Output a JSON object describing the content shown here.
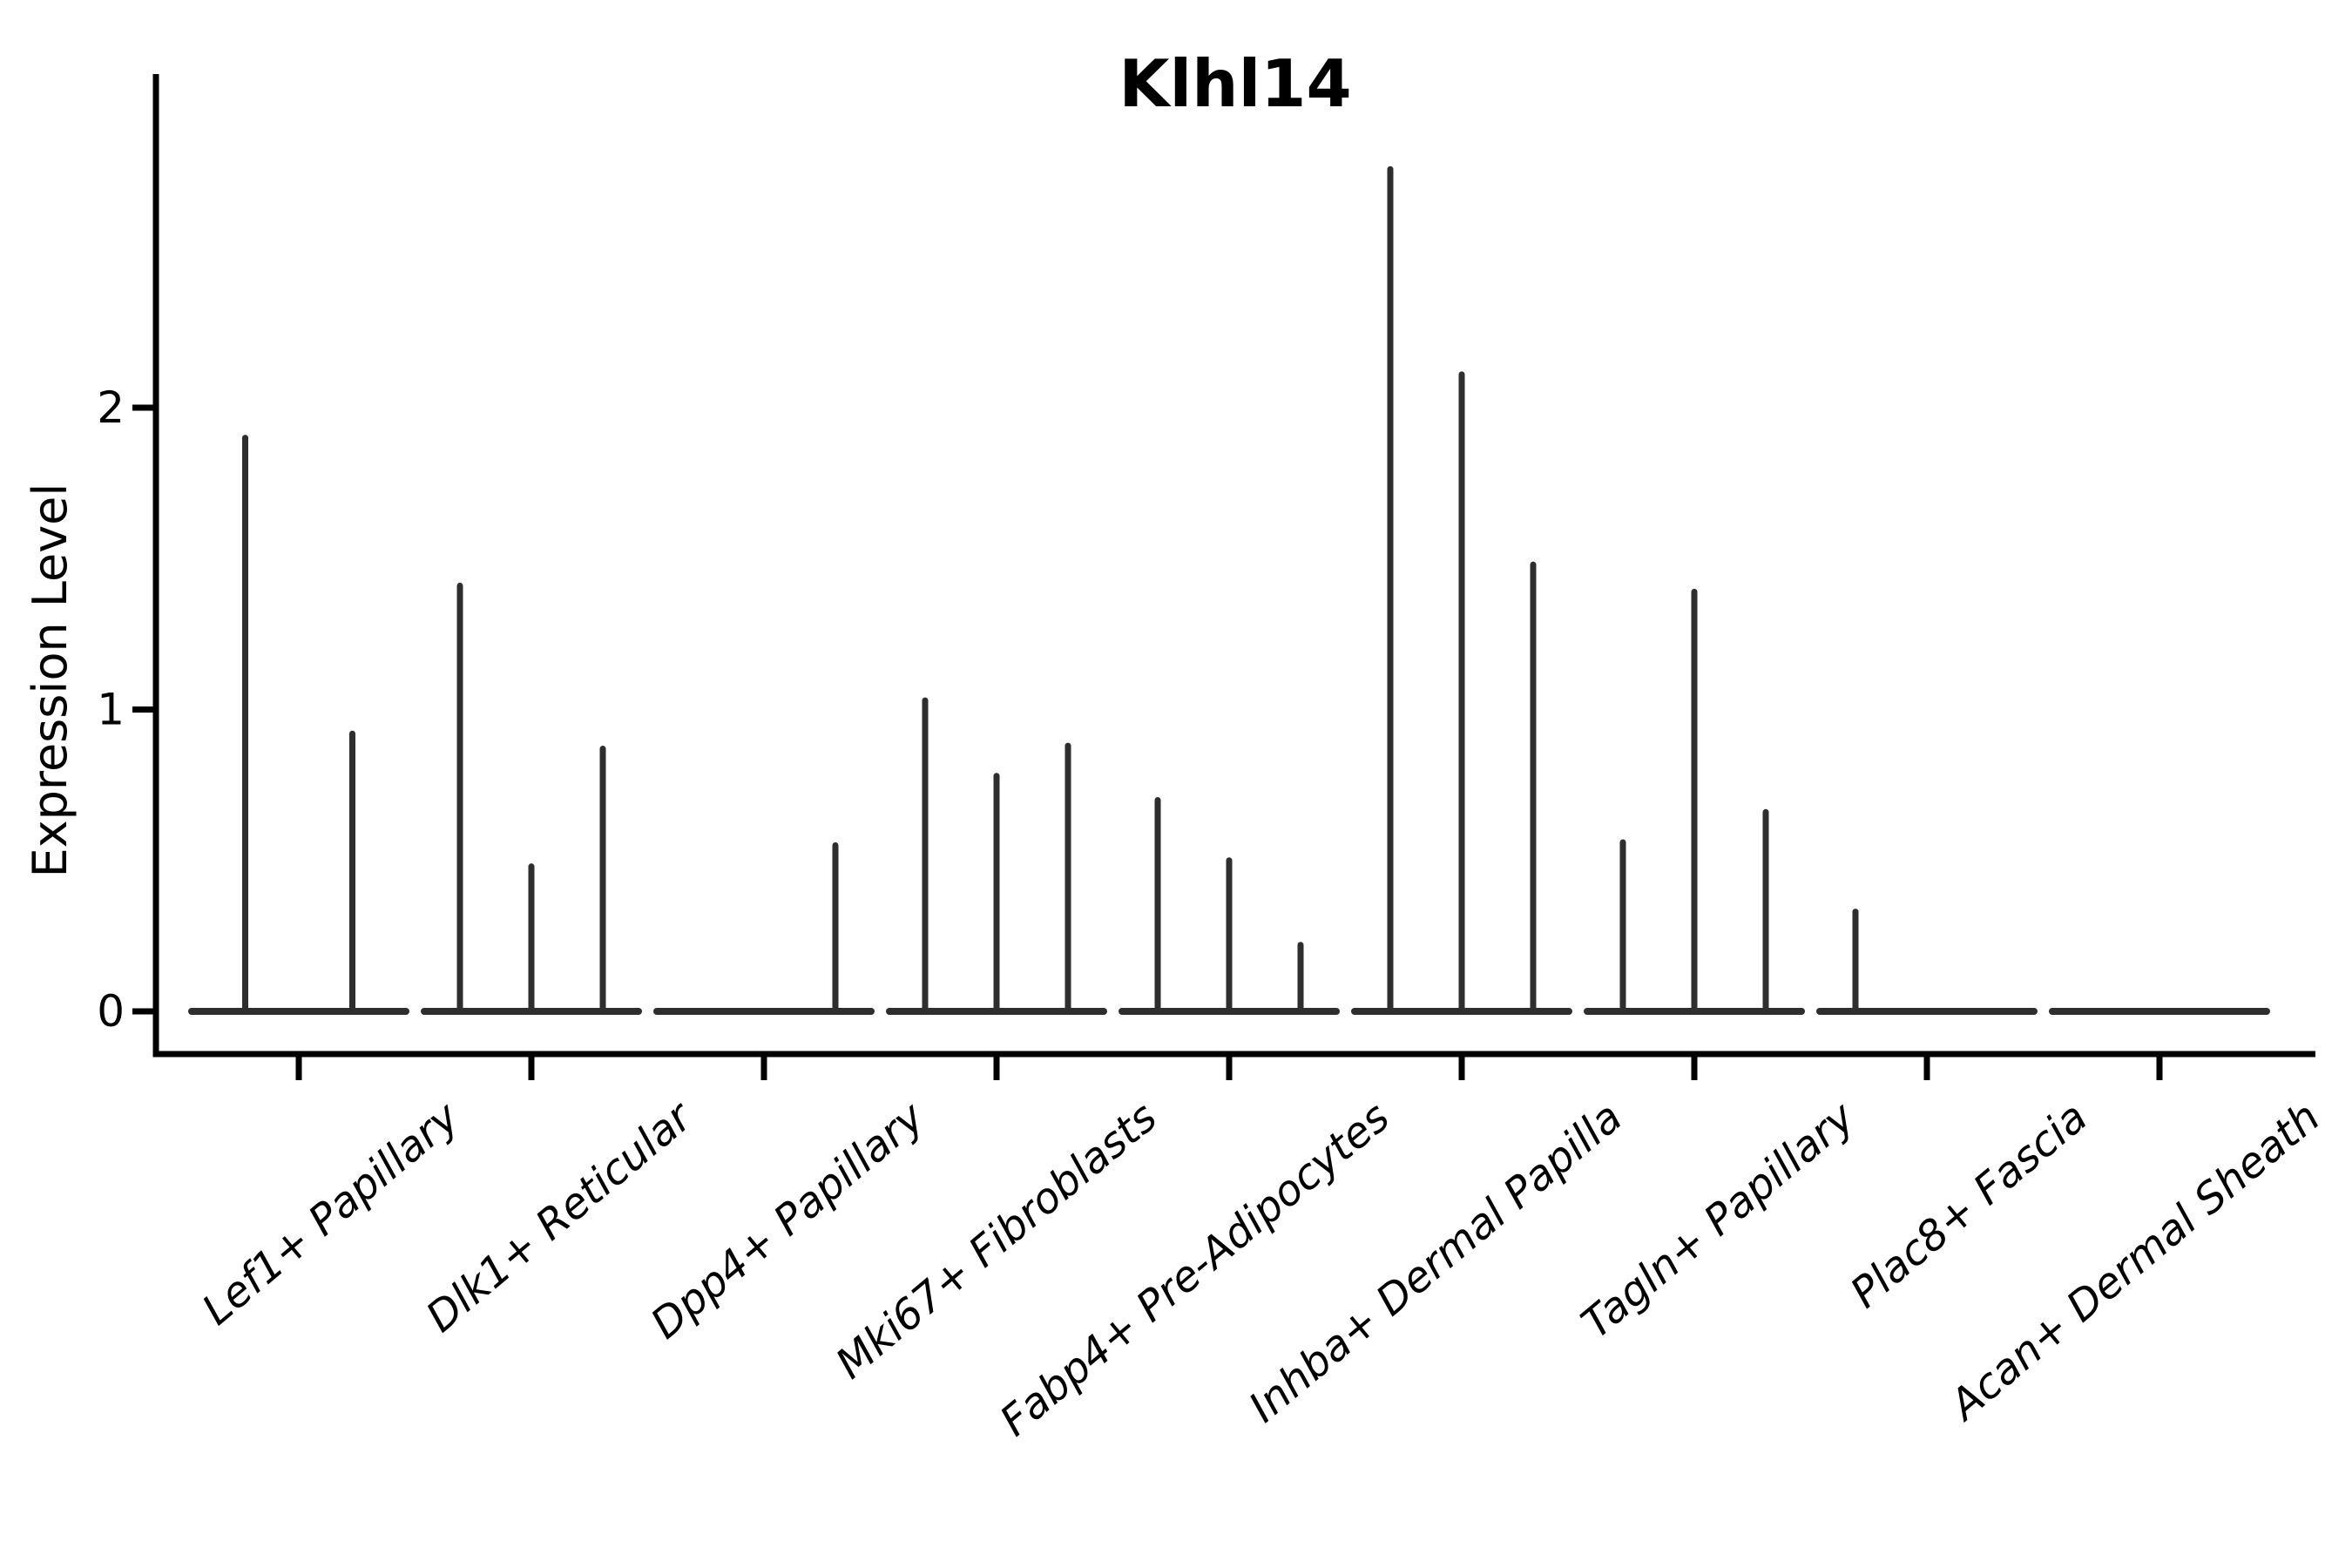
{
  "title": "Klhl14",
  "y_axis": {
    "label": "Expression Level",
    "ticks": [
      "0",
      "1",
      "2"
    ],
    "tick_values": [
      0,
      1,
      2
    ]
  },
  "chart_data": {
    "type": "violin",
    "title": "Klhl14",
    "xlabel": "",
    "ylabel": "Expression Level",
    "yticks": [
      0,
      1,
      2
    ],
    "ylim": [
      -0.14,
      3.11
    ],
    "grid": false,
    "legend": false,
    "description": "Collapsed (spike-like) violins of gene expression per cell type; each category shows a flat baseline at 0 with thin vertical violins whose tops mark the maximum expression level.",
    "categories": [
      "Lef1+ Papillary",
      "Dlk1+ Reticular",
      "Dpp4+ Papillary",
      "Mki67+ Fibroblasts",
      "Fabp4+ Pre-Adipocytes",
      "Inhba+ Dermal Papilla",
      "Tagln+ Papillary",
      "Plac8+ Fascia",
      "Acan+ Dermal Sheath"
    ],
    "groups": [
      {
        "category": "Lef1+ Papillary",
        "n_violins": 2,
        "violins": [
          {
            "slot": 1,
            "max": 1.9
          },
          {
            "slot": 2,
            "max": 0.92
          }
        ]
      },
      {
        "category": "Dlk1+ Reticular",
        "n_violins": 3,
        "violins": [
          {
            "slot": 1,
            "max": 1.41
          },
          {
            "slot": 2,
            "max": 0.48
          },
          {
            "slot": 3,
            "max": 0.87
          }
        ]
      },
      {
        "category": "Dpp4+ Papillary",
        "n_violins": 3,
        "violins": [
          {
            "slot": 3,
            "max": 0.55
          }
        ]
      },
      {
        "category": "Mki67+ Fibroblasts",
        "n_violins": 3,
        "violins": [
          {
            "slot": 1,
            "max": 1.03
          },
          {
            "slot": 2,
            "max": 0.78
          },
          {
            "slot": 3,
            "max": 0.88
          }
        ]
      },
      {
        "category": "Fabp4+ Pre-Adipocytes",
        "n_violins": 3,
        "violins": [
          {
            "slot": 1,
            "max": 0.7
          },
          {
            "slot": 2,
            "max": 0.5
          },
          {
            "slot": 3,
            "max": 0.22
          }
        ]
      },
      {
        "category": "Inhba+ Dermal Papilla",
        "n_violins": 3,
        "violins": [
          {
            "slot": 1,
            "max": 2.79
          },
          {
            "slot": 2,
            "max": 2.11
          },
          {
            "slot": 3,
            "max": 1.48
          }
        ]
      },
      {
        "category": "Tagln+ Papillary",
        "n_violins": 3,
        "violins": [
          {
            "slot": 1,
            "max": 0.56
          },
          {
            "slot": 2,
            "max": 1.39
          },
          {
            "slot": 3,
            "max": 0.66
          }
        ]
      },
      {
        "category": "Plac8+ Fascia",
        "n_violins": 3,
        "violins": [
          {
            "slot": 1,
            "max": 0.33
          }
        ]
      },
      {
        "category": "Acan+ Dermal Sheath",
        "n_violins": 3,
        "violins": []
      }
    ],
    "colors": {
      "violin": "#2e2e2e",
      "axis": "#000000",
      "text": "#000000",
      "background": "#ffffff"
    }
  }
}
